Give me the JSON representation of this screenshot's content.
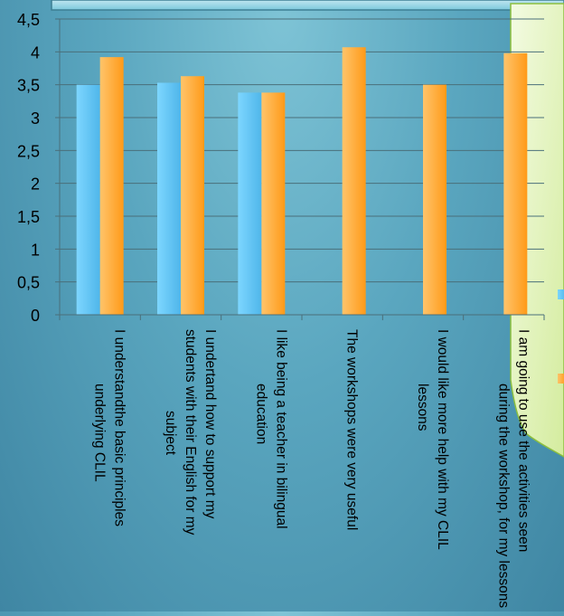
{
  "chart_data": {
    "type": "bar",
    "categories": [
      [
        "I understandthe basic principles",
        "underlying CLIL"
      ],
      [
        "I undertand how to support my",
        "students with their English for my",
        "subject"
      ],
      [
        "I like being a teacher in bilingual",
        "education"
      ],
      [
        "The workshops were very useful"
      ],
      [
        "I would like more help with my CLIL",
        "lessons"
      ],
      [
        "I am going to use the activities  seen",
        "during the workshop, for my lessons"
      ]
    ],
    "series": [
      {
        "values": [
          3.5,
          3.53,
          3.38,
          null,
          null,
          null
        ],
        "color": "#5cc6f2"
      },
      {
        "values": [
          3.92,
          3.63,
          3.38,
          4.07,
          3.5,
          3.98
        ],
        "color": "#ffa826"
      }
    ],
    "ylim": [
      0,
      4.5
    ],
    "yticks": [
      "0",
      "0,5",
      "1",
      "1,5",
      "2",
      "2,5",
      "3",
      "3,5",
      "4",
      "4,5"
    ],
    "ytick_values": [
      0,
      0.5,
      1,
      1.5,
      2,
      2.5,
      3,
      3.5,
      4,
      4.5
    ],
    "grid": true,
    "legend_position": "right",
    "title": "",
    "xlabel": "",
    "ylabel": ""
  }
}
